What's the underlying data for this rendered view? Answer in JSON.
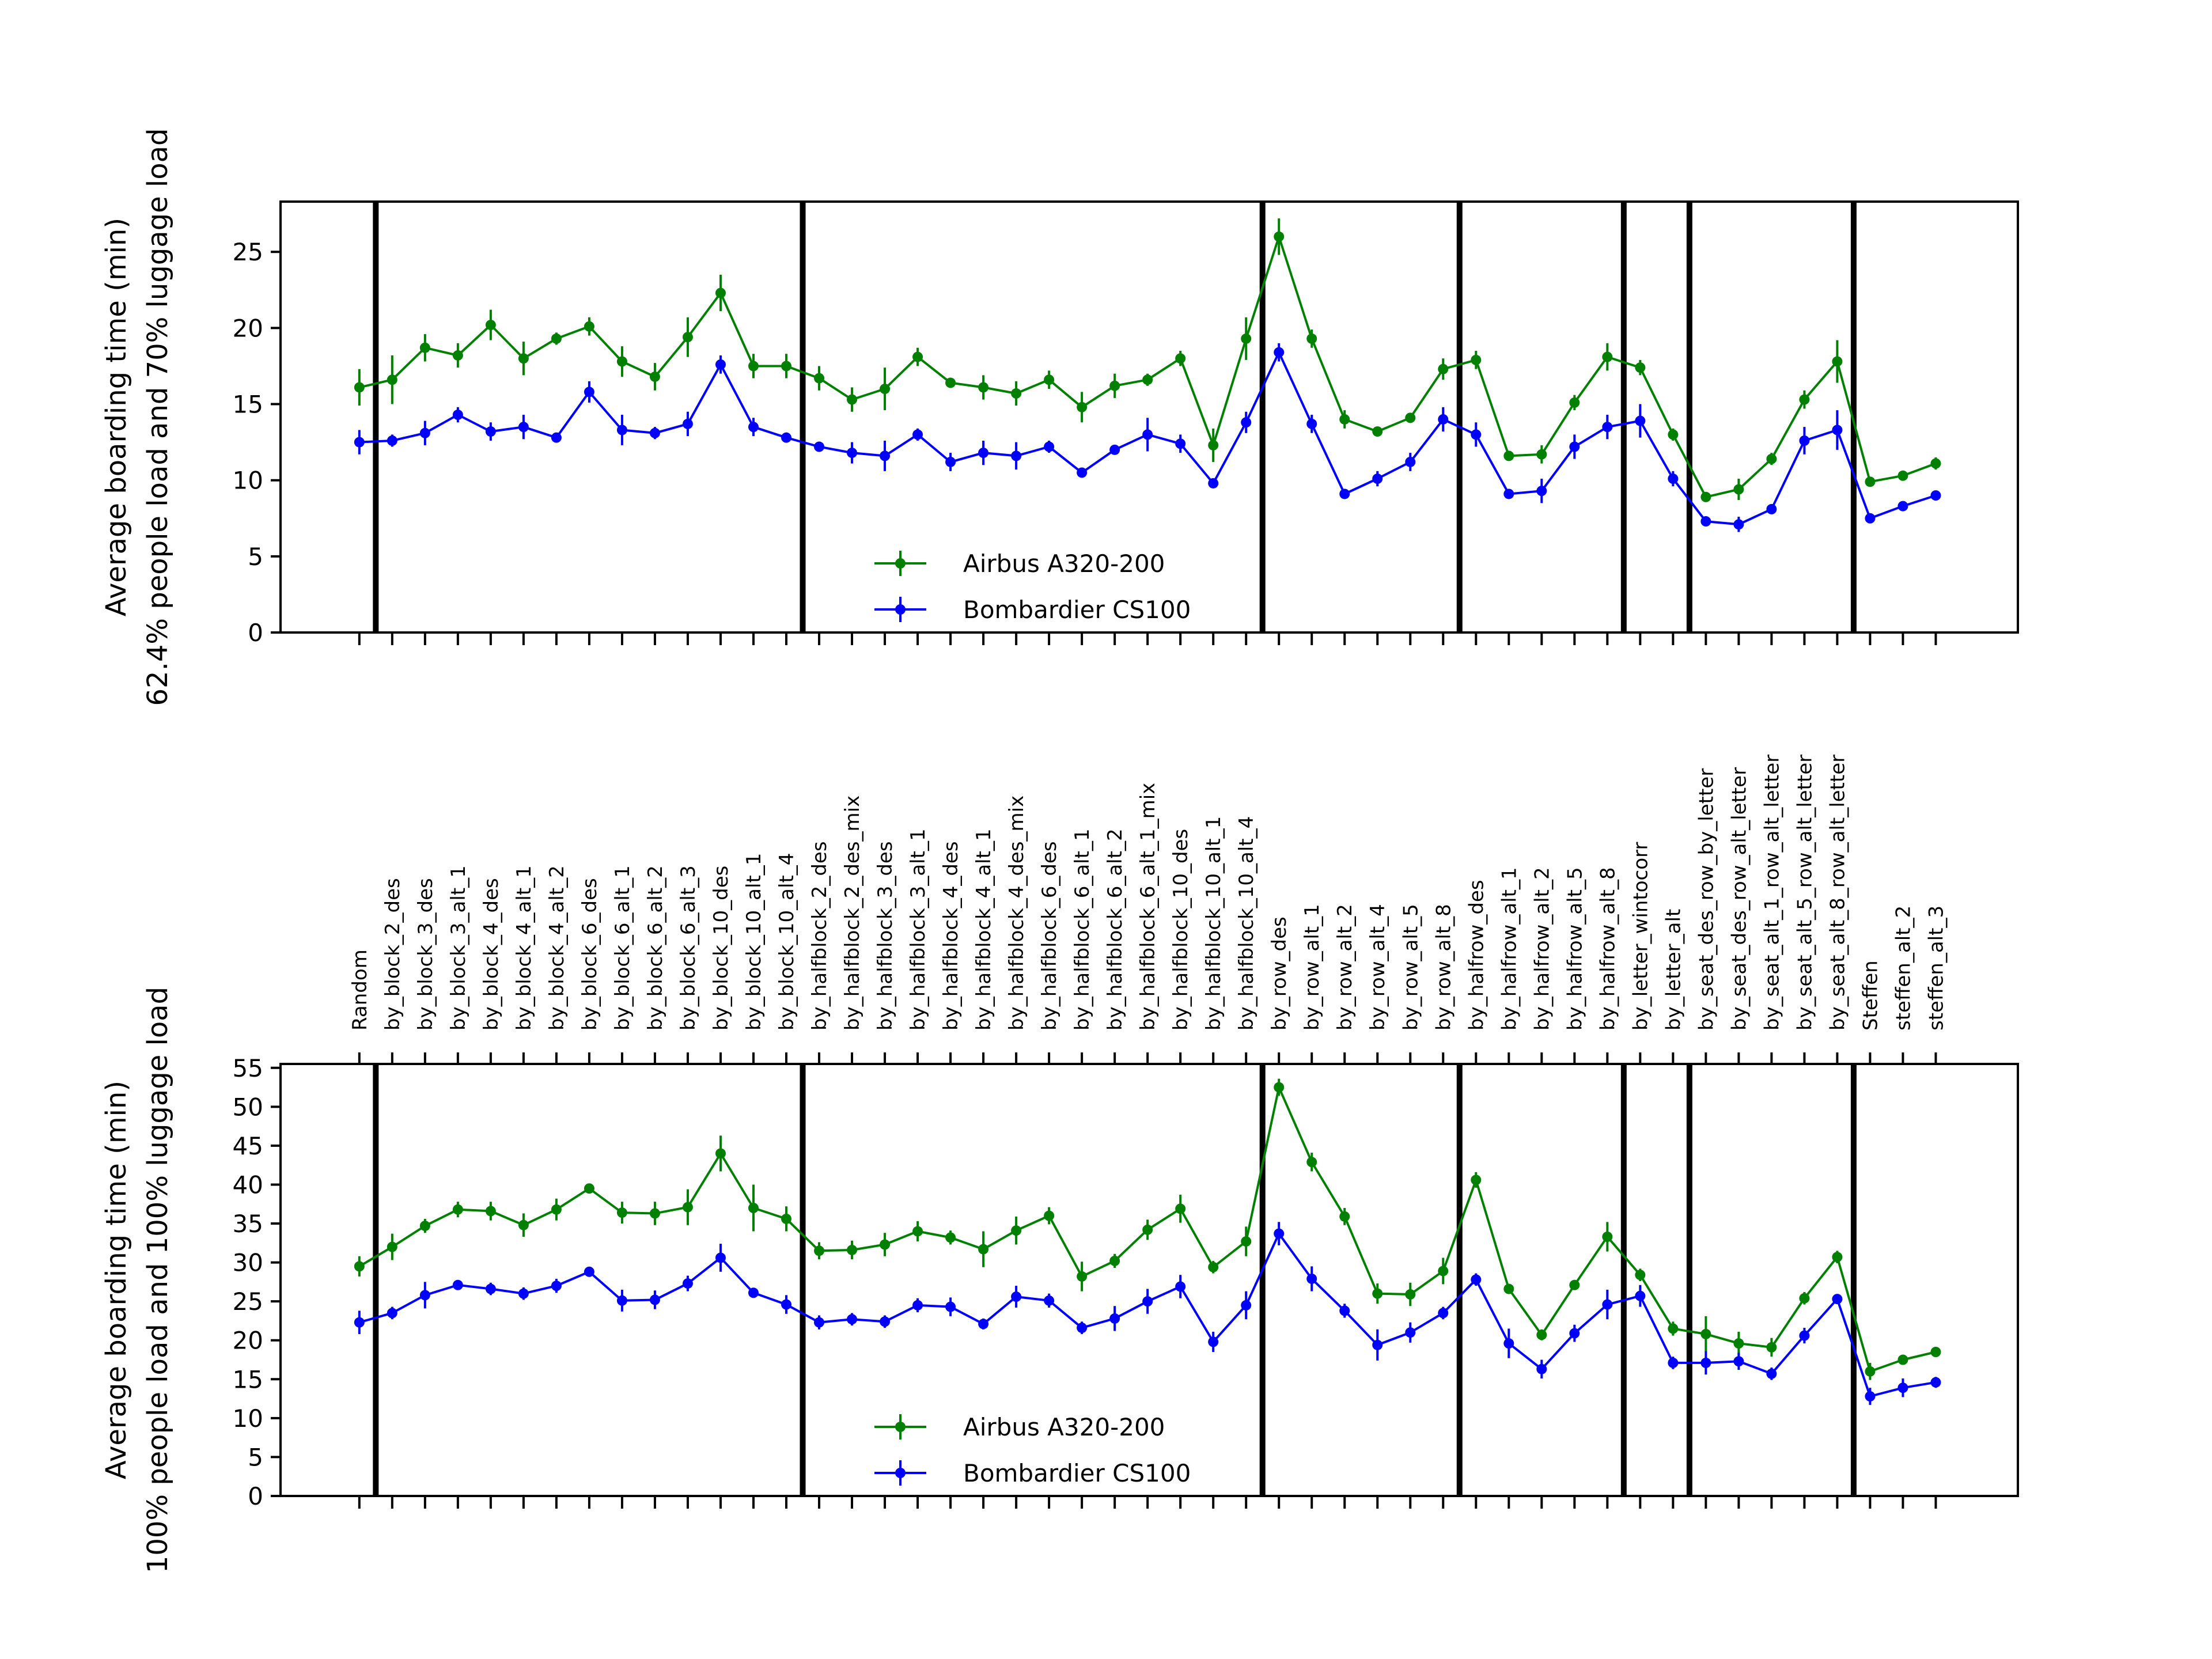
{
  "chart_data": [
    {
      "type": "line",
      "ylabel_line1": "Average boarding time (min)",
      "ylabel_line2": "62.4% people load and 70% luggage load",
      "ylim": [
        0,
        28.3
      ],
      "yticks": [
        0,
        5,
        10,
        15,
        20,
        25
      ],
      "show_category_labels": false,
      "legend_position": "lower center",
      "series": [
        {
          "name": "Airbus A320-200",
          "color": "#008000",
          "values": [
            16.1,
            16.6,
            18.7,
            18.2,
            20.2,
            18.0,
            19.3,
            20.1,
            17.8,
            16.8,
            19.4,
            22.3,
            17.5,
            17.5,
            16.7,
            15.3,
            16.0,
            18.1,
            16.4,
            16.1,
            15.7,
            16.6,
            14.8,
            16.2,
            16.6,
            18.0,
            12.3,
            19.3,
            26.0,
            19.3,
            14.0,
            13.2,
            14.1,
            17.3,
            17.9,
            11.6,
            11.7,
            15.1,
            18.1,
            17.4,
            13.0,
            8.9,
            9.4,
            11.4,
            15.3,
            17.8,
            9.9,
            10.3,
            11.1
          ],
          "errors": [
            1.2,
            1.6,
            0.9,
            0.8,
            1.0,
            1.1,
            0.4,
            0.6,
            1.0,
            0.9,
            1.3,
            1.2,
            0.8,
            0.8,
            0.8,
            0.8,
            1.4,
            0.6,
            0.3,
            0.8,
            0.8,
            0.6,
            1.0,
            0.8,
            0.4,
            0.5,
            1.1,
            1.4,
            1.2,
            0.6,
            0.6,
            0.3,
            0.3,
            0.7,
            0.6,
            0.3,
            0.6,
            0.5,
            0.9,
            0.5,
            0.4,
            0.3,
            0.7,
            0.4,
            0.6,
            1.4,
            0.3,
            0.3,
            0.4
          ]
        },
        {
          "name": "Bombardier CS100",
          "color": "#0000ff",
          "values": [
            12.5,
            12.6,
            13.1,
            14.3,
            13.2,
            13.5,
            12.8,
            15.8,
            13.3,
            13.1,
            13.7,
            17.6,
            13.5,
            12.8,
            12.2,
            11.8,
            11.6,
            13.0,
            11.2,
            11.8,
            11.6,
            12.2,
            10.5,
            12.0,
            13.0,
            12.4,
            9.8,
            13.8,
            18.4,
            13.7,
            9.1,
            10.1,
            11.2,
            14.0,
            13.0,
            9.1,
            9.3,
            12.2,
            13.5,
            13.9,
            10.1,
            7.3,
            7.1,
            8.1,
            12.6,
            13.3,
            7.5,
            8.3,
            9.0
          ],
          "errors": [
            0.8,
            0.4,
            0.8,
            0.5,
            0.6,
            0.8,
            0.3,
            0.7,
            1.0,
            0.4,
            0.8,
            0.6,
            0.6,
            0.3,
            0.3,
            0.7,
            1.0,
            0.4,
            0.6,
            0.8,
            0.9,
            0.4,
            0.3,
            0.3,
            1.1,
            0.6,
            0.3,
            0.7,
            0.6,
            0.6,
            0.3,
            0.5,
            0.6,
            0.8,
            0.8,
            0.3,
            0.8,
            0.8,
            0.8,
            1.1,
            0.5,
            0.3,
            0.5,
            0.3,
            0.9,
            1.3,
            0.3,
            0.3,
            0.3
          ]
        }
      ]
    },
    {
      "type": "line",
      "ylabel_line1": "Average boarding time (min)",
      "ylabel_line2": "100% people load and 100% luggage load",
      "ylim": [
        0,
        55.5
      ],
      "yticks": [
        0,
        5,
        10,
        15,
        20,
        25,
        30,
        35,
        40,
        45,
        50,
        55
      ],
      "show_category_labels": true,
      "legend_position": "lower center",
      "series": [
        {
          "name": "Airbus A320-200",
          "color": "#008000",
          "values": [
            29.5,
            32.0,
            34.7,
            36.8,
            36.6,
            34.8,
            36.8,
            39.5,
            36.4,
            36.3,
            37.1,
            44.0,
            37.0,
            35.6,
            31.5,
            31.6,
            32.3,
            34.0,
            33.2,
            31.7,
            34.1,
            36.0,
            28.2,
            30.2,
            34.2,
            36.9,
            29.4,
            32.7,
            52.5,
            42.9,
            35.9,
            26.0,
            25.9,
            28.9,
            40.6,
            26.6,
            20.7,
            27.1,
            33.3,
            28.4,
            21.5,
            20.8,
            19.6,
            19.1,
            25.4,
            30.7,
            16.0,
            17.5,
            18.5
          ],
          "errors": [
            1.3,
            1.7,
            0.9,
            1.0,
            1.2,
            1.5,
            1.4,
            0.6,
            1.4,
            1.5,
            2.3,
            2.3,
            3.0,
            1.6,
            1.1,
            1.2,
            1.5,
            1.3,
            0.9,
            2.3,
            1.8,
            1.1,
            1.9,
            0.9,
            1.3,
            1.8,
            0.8,
            1.9,
            1.1,
            1.2,
            1.1,
            1.3,
            1.5,
            1.7,
            1.0,
            0.5,
            0.7,
            0.5,
            1.9,
            0.8,
            0.9,
            2.3,
            1.5,
            1.2,
            0.8,
            0.8,
            1.1,
            0.6,
            0.6
          ]
        },
        {
          "name": "Bombardier CS100",
          "color": "#0000ff",
          "values": [
            22.3,
            23.5,
            25.8,
            27.1,
            26.6,
            26.0,
            27.0,
            28.8,
            25.1,
            25.2,
            27.3,
            30.6,
            26.1,
            24.6,
            22.3,
            22.7,
            22.4,
            24.5,
            24.3,
            22.1,
            25.6,
            25.1,
            21.6,
            22.8,
            25.0,
            26.9,
            19.8,
            24.5,
            33.7,
            27.9,
            23.8,
            19.4,
            21.0,
            23.5,
            27.8,
            19.6,
            16.3,
            20.9,
            24.6,
            25.7,
            17.1,
            17.1,
            17.3,
            15.7,
            20.6,
            25.3,
            12.8,
            13.9,
            14.6
          ],
          "errors": [
            1.5,
            0.8,
            1.7,
            0.6,
            0.8,
            0.8,
            0.9,
            0.6,
            1.4,
            1.2,
            1.0,
            1.8,
            0.6,
            1.2,
            0.9,
            0.8,
            0.8,
            0.9,
            1.2,
            0.7,
            1.4,
            0.9,
            0.8,
            1.6,
            1.6,
            1.5,
            1.3,
            1.8,
            1.5,
            1.6,
            0.9,
            2.0,
            1.3,
            0.8,
            0.8,
            1.9,
            1.2,
            1.1,
            1.9,
            1.4,
            0.8,
            1.5,
            1.1,
            0.8,
            1.0,
            0.6,
            1.1,
            1.2,
            0.7
          ]
        }
      ]
    }
  ],
  "categories": [
    "Random",
    "by_block_2_des",
    "by_block_3_des",
    "by_block_3_alt_1",
    "by_block_4_des",
    "by_block_4_alt_1",
    "by_block_4_alt_2",
    "by_block_6_des",
    "by_block_6_alt_1",
    "by_block_6_alt_2",
    "by_block_6_alt_3",
    "by_block_10_des",
    "by_block_10_alt_1",
    "by_block_10_alt_4",
    "by_halfblock_2_des",
    "by_halfblock_2_des_mix",
    "by_halfblock_3_des",
    "by_halfblock_3_alt_1",
    "by_halfblock_4_des",
    "by_halfblock_4_alt_1",
    "by_halfblock_4_des_mix",
    "by_halfblock_6_des",
    "by_halfblock_6_alt_1",
    "by_halfblock_6_alt_2",
    "by_halfblock_6_alt_1_mix",
    "by_halfblock_10_des",
    "by_halfblock_10_alt_1",
    "by_halfblock_10_alt_4",
    "by_row_des",
    "by_row_alt_1",
    "by_row_alt_2",
    "by_row_alt_4",
    "by_row_alt_5",
    "by_row_alt_8",
    "by_halfrow_des",
    "by_halfrow_alt_1",
    "by_halfrow_alt_2",
    "by_halfrow_alt_5",
    "by_halfrow_alt_8",
    "by_letter_wintocorr",
    "by_letter_alt",
    "by_seat_des_row_by_letter",
    "by_seat_des_row_alt_letter",
    "by_seat_alt_1_row_alt_letter",
    "by_seat_alt_5_row_alt_letter",
    "by_seat_alt_8_row_alt_letter",
    "Steffen",
    "steffen_alt_2",
    "steffen_alt_3"
  ],
  "group_separators_after_index": [
    0,
    13,
    27,
    33,
    38,
    40,
    45
  ],
  "xlim": [
    -2.4,
    50.5
  ]
}
